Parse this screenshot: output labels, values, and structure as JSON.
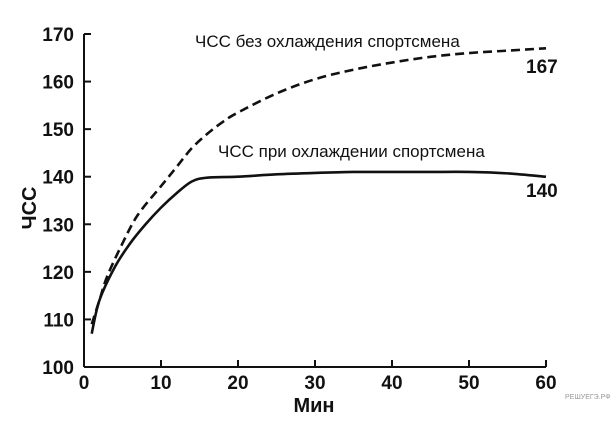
{
  "chart_data": {
    "type": "line",
    "xlabel": "Мин",
    "ylabel": "ЧСС",
    "xlim": [
      0,
      60
    ],
    "ylim": [
      100,
      170
    ],
    "x_ticks": [
      0,
      10,
      20,
      30,
      40,
      50,
      60
    ],
    "y_ticks": [
      100,
      110,
      120,
      130,
      140,
      150,
      160,
      170
    ],
    "grid": false,
    "series": [
      {
        "name": "ЧСС без охлаждения спортсмена",
        "style": "dashed",
        "end_label": "167",
        "x": [
          1,
          2,
          3,
          5,
          7,
          10,
          12,
          14,
          16,
          18,
          20,
          25,
          30,
          35,
          40,
          45,
          50,
          55,
          60
        ],
        "y": [
          109,
          114,
          119,
          126,
          132,
          138,
          142,
          146,
          149,
          151.5,
          153.5,
          157.5,
          160.5,
          162.5,
          164,
          165.2,
          166,
          166.5,
          167
        ]
      },
      {
        "name": "ЧСС при охлаждении спортсмена",
        "style": "solid",
        "end_label": "140",
        "x": [
          1,
          2,
          4,
          6,
          8,
          10,
          12,
          14,
          16,
          20,
          25,
          30,
          35,
          40,
          45,
          50,
          55,
          60
        ],
        "y": [
          107,
          114,
          121,
          126,
          130,
          133.5,
          136.5,
          139,
          139.8,
          140,
          140.5,
          140.8,
          141,
          141,
          141,
          141,
          140.7,
          140
        ]
      }
    ]
  },
  "watermark": "РЕШУЕГЭ.РФ"
}
